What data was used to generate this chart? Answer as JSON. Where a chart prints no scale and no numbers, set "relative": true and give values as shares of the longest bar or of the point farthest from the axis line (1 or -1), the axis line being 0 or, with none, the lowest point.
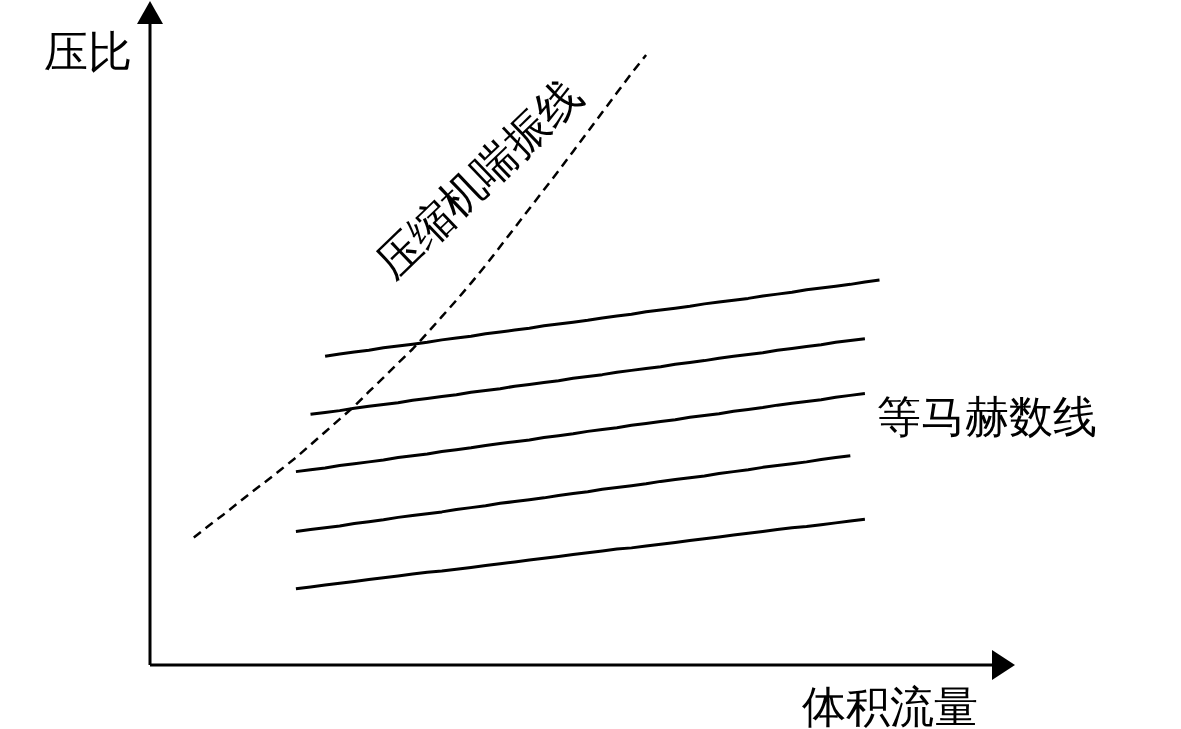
{
  "chart_data": {
    "type": "line",
    "relative": true,
    "xlabel": "体积流量",
    "ylabel": "压比",
    "line_style": "solid",
    "categories": [
      null,
      null,
      null,
      null,
      null,
      null,
      null,
      null,
      null,
      null,
      null,
      null,
      null,
      null,
      null,
      null,
      null,
      null,
      null,
      null,
      null,
      null,
      null,
      null,
      null,
      null,
      null,
      null,
      null,
      null,
      null,
      null,
      null,
      null,
      null,
      null,
      null,
      null,
      null,
      null,
      null,
      null,
      null,
      null,
      null,
      null,
      null,
      null
    ],
    "series": [
      {
        "name": "压缩机喘振线",
        "color": "#000000",
        "line_style": "dashed",
        "values": [
          0.209,
          0.228,
          0.246,
          0.265,
          0.284,
          0.302,
          0.321,
          0.34,
          0.361,
          0.382,
          0.403,
          0.424,
          0.448,
          0.471,
          0.495,
          0.518,
          0.544,
          0.571,
          0.598,
          0.626,
          0.655,
          0.686,
          0.717,
          0.748,
          0.779,
          0.81,
          0.842,
          0.874,
          0.906,
          0.938,
          0.97,
          1.0,
          null,
          null,
          null,
          null,
          null,
          null,
          null,
          null,
          null,
          null,
          null,
          null,
          null,
          null,
          null,
          null
        ]
      },
      {
        "color": "#000000",
        "values": [
          null,
          null,
          null,
          null,
          null,
          null,
          null,
          null,
          null,
          0.506,
          0.51,
          0.513,
          0.516,
          0.52,
          0.523,
          0.526,
          0.529,
          0.533,
          0.536,
          0.539,
          0.543,
          0.546,
          0.549,
          0.552,
          0.556,
          0.559,
          0.562,
          0.565,
          0.569,
          0.572,
          0.575,
          0.579,
          0.582,
          0.585,
          0.588,
          0.592,
          0.595,
          0.598,
          0.601,
          0.605,
          0.608,
          0.611,
          0.615,
          0.618,
          0.621,
          0.624,
          0.628,
          0.631
        ]
      },
      {
        "color": "#000000",
        "values": [
          null,
          null,
          null,
          null,
          null,
          null,
          null,
          null,
          0.411,
          0.414,
          0.417,
          0.421,
          0.424,
          0.427,
          0.43,
          0.434,
          0.437,
          0.44,
          0.443,
          0.447,
          0.45,
          0.453,
          0.457,
          0.46,
          0.463,
          0.466,
          0.47,
          0.473,
          0.476,
          0.48,
          0.483,
          0.486,
          0.489,
          0.493,
          0.496,
          0.499,
          0.503,
          0.506,
          0.509,
          0.512,
          0.516,
          0.519,
          0.522,
          0.525,
          0.529,
          0.532,
          0.535,
          null
        ]
      },
      {
        "name": "等马赫数线",
        "color": "#000000",
        "values": [
          null,
          null,
          null,
          null,
          null,
          null,
          null,
          0.317,
          0.32,
          0.323,
          0.327,
          0.33,
          0.333,
          0.336,
          0.34,
          0.343,
          0.346,
          0.35,
          0.353,
          0.356,
          0.36,
          0.363,
          0.366,
          0.369,
          0.373,
          0.376,
          0.379,
          0.383,
          0.386,
          0.389,
          0.393,
          0.396,
          0.399,
          0.402,
          0.406,
          0.409,
          0.412,
          0.416,
          0.419,
          0.422,
          0.426,
          0.429,
          0.432,
          0.435,
          0.439,
          0.442,
          0.445,
          null
        ]
      },
      {
        "color": "#000000",
        "values": [
          null,
          null,
          null,
          null,
          null,
          null,
          null,
          0.219,
          0.222,
          0.225,
          0.228,
          0.232,
          0.235,
          0.238,
          0.242,
          0.245,
          0.248,
          0.251,
          0.255,
          0.258,
          0.261,
          0.265,
          0.268,
          0.271,
          0.274,
          0.278,
          0.281,
          0.284,
          0.288,
          0.291,
          0.294,
          0.297,
          0.301,
          0.304,
          0.307,
          0.31,
          0.314,
          0.317,
          0.32,
          0.324,
          0.327,
          0.33,
          0.333,
          0.337,
          0.34,
          0.343,
          null,
          null
        ]
      },
      {
        "color": "#000000",
        "values": [
          null,
          null,
          null,
          null,
          null,
          null,
          null,
          0.125,
          0.128,
          0.131,
          0.134,
          0.137,
          0.14,
          0.143,
          0.146,
          0.149,
          0.152,
          0.154,
          0.157,
          0.16,
          0.163,
          0.166,
          0.169,
          0.172,
          0.175,
          0.178,
          0.181,
          0.184,
          0.187,
          0.19,
          0.192,
          0.195,
          0.198,
          0.201,
          0.204,
          0.207,
          0.21,
          0.213,
          0.216,
          0.219,
          0.222,
          0.225,
          0.227,
          0.23,
          0.233,
          0.236,
          0.239,
          null
        ]
      }
    ]
  }
}
